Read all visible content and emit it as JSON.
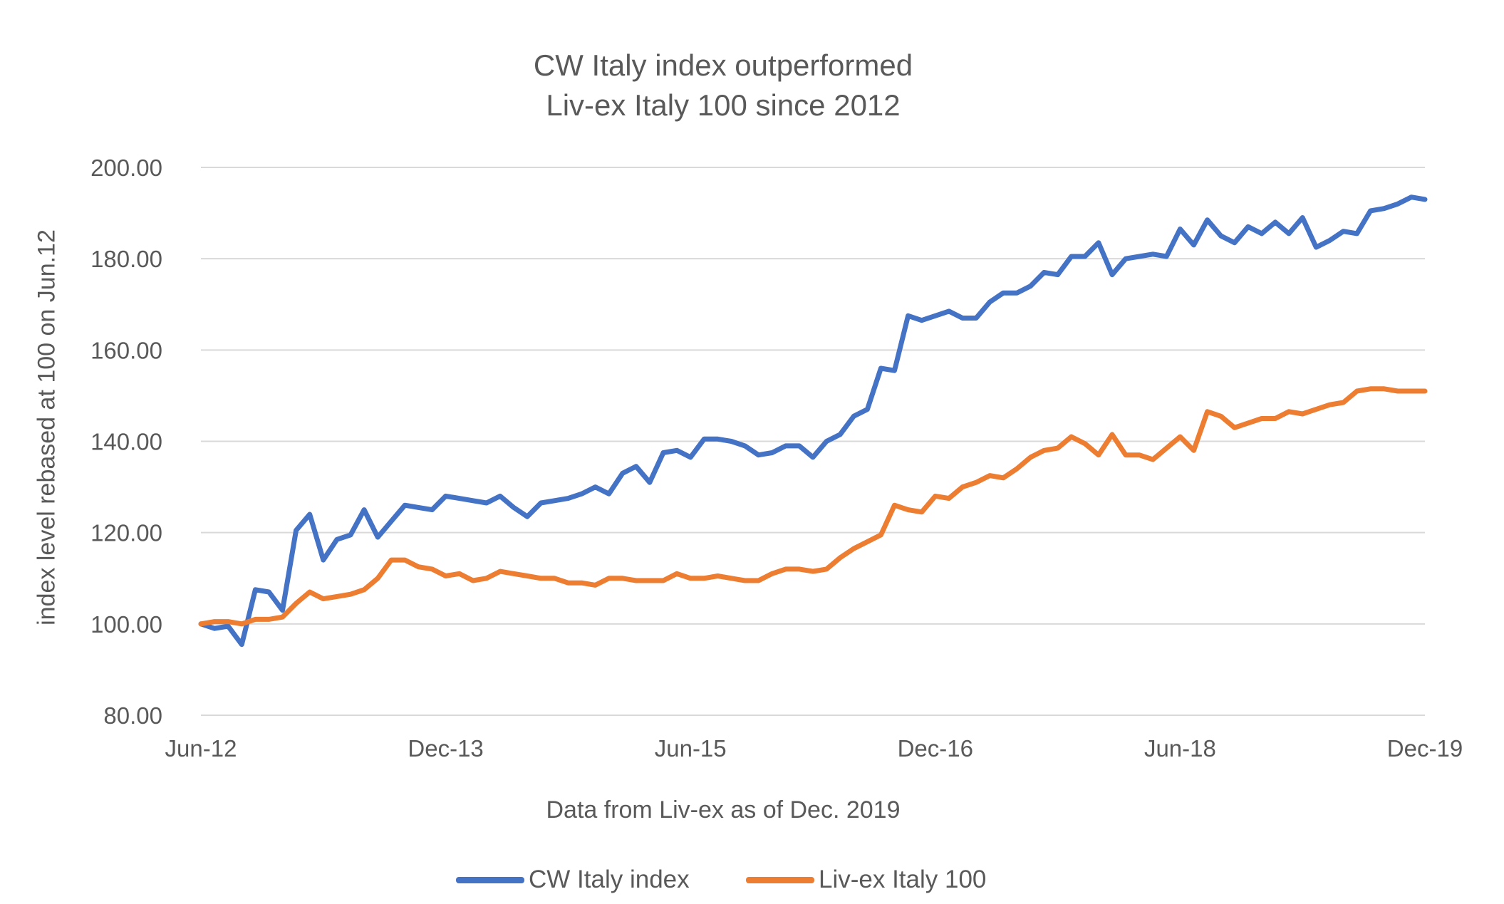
{
  "chart_data": {
    "type": "line",
    "title": [
      "CW Italy index outperformed",
      "Liv-ex Italy 100 since 2012"
    ],
    "xlabel": "Data from Liv-ex as of Dec. 2019",
    "ylabel": "index level rebased at 100 on Jun.12",
    "ylim": [
      80,
      200
    ],
    "yticks": [
      "80.00",
      "100.00",
      "120.00",
      "140.00",
      "160.00",
      "180.00",
      "200.00"
    ],
    "xtick_labels": [
      "Jun-12",
      "Dec-13",
      "Jun-15",
      "Dec-16",
      "Jun-18",
      "Dec-19"
    ],
    "x_start": "Jun-12",
    "x_end": "Dec-19",
    "grid": true,
    "legend_position": "bottom",
    "series": [
      {
        "name": "CW Italy index",
        "color": "#4472C4",
        "values": [
          100,
          99,
          99.5,
          95.5,
          107.5,
          107,
          103,
          120.5,
          124,
          114,
          118.5,
          119.5,
          125,
          119,
          122.5,
          126,
          125.5,
          125,
          128,
          127.5,
          127,
          126.5,
          128,
          125.5,
          123.5,
          126.5,
          127,
          127.5,
          128.5,
          130,
          128.5,
          133,
          134.5,
          131,
          137.5,
          138,
          136.5,
          140.5,
          140.5,
          140,
          139,
          137,
          137.5,
          139,
          139,
          136.5,
          140,
          141.5,
          145.5,
          147,
          156,
          155.5,
          167.5,
          166.5,
          167.5,
          168.5,
          167,
          167,
          170.5,
          172.5,
          172.5,
          174,
          177,
          176.5,
          180.5,
          180.5,
          183.5,
          176.5,
          180,
          180.5,
          181,
          180.5,
          186.5,
          183,
          188.5,
          185,
          183.5,
          187,
          185.5,
          188,
          185.5,
          189,
          182.5,
          184,
          186,
          185.5,
          190.5,
          191,
          192,
          193.5,
          193
        ]
      },
      {
        "name": "Liv-ex Italy 100",
        "color": "#ED7D31",
        "values": [
          100,
          100.5,
          100.5,
          100,
          101,
          101,
          101.5,
          104.5,
          107,
          105.5,
          106,
          106.5,
          107.5,
          110,
          114,
          114,
          112.5,
          112,
          110.5,
          111,
          109.5,
          110,
          111.5,
          111,
          110.5,
          110,
          110,
          109,
          109,
          108.5,
          110,
          110,
          109.5,
          109.5,
          109.5,
          111,
          110,
          110,
          110.5,
          110,
          109.5,
          109.5,
          111,
          112,
          112,
          111.5,
          112,
          114.5,
          116.5,
          118,
          119.5,
          126,
          125,
          124.5,
          128,
          127.5,
          130,
          131,
          132.5,
          132,
          134,
          136.5,
          138,
          138.5,
          141,
          139.5,
          137,
          141.5,
          137,
          137,
          136,
          138.5,
          141,
          138,
          146.5,
          145.5,
          143,
          144,
          145,
          145,
          146.5,
          146,
          147,
          148,
          148.5,
          151,
          151.5,
          151.5,
          151,
          151,
          151
        ]
      }
    ]
  }
}
